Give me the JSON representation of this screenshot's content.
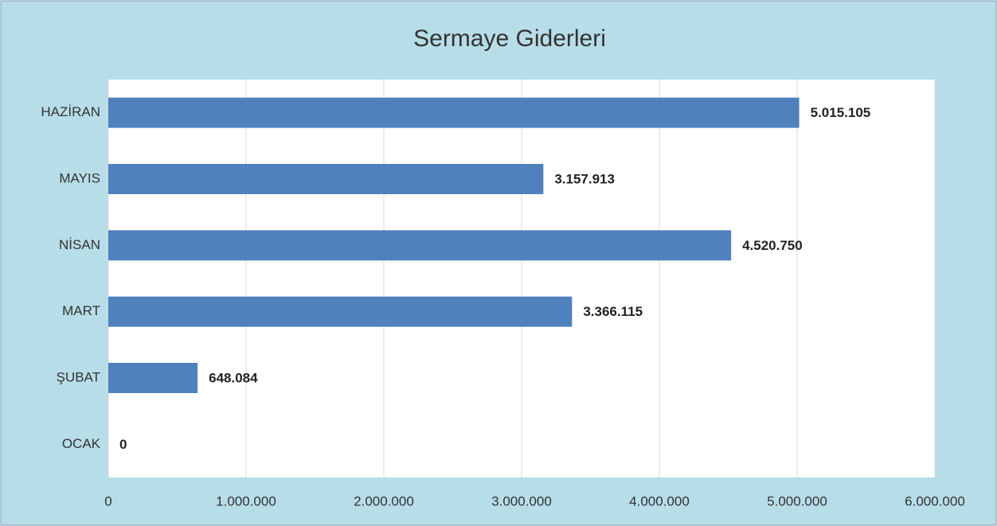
{
  "chart_data": {
    "type": "bar",
    "orientation": "horizontal",
    "title": "Sermaye Giderleri",
    "categories": [
      "HAZİRAN",
      "MAYIS",
      "NİSAN",
      "MART",
      "ŞUBAT",
      "OCAK"
    ],
    "values": [
      5015105,
      3157913,
      4520750,
      3366115,
      648084,
      0
    ],
    "value_labels": [
      "5.015.105",
      "3.157.913",
      "4.520.750",
      "3.366.115",
      "648.084",
      "0"
    ],
    "color": "#4f81bd",
    "xlim": [
      0,
      6000000
    ],
    "xticks": [
      0,
      {
        "value": 1000000,
        "label": "1.000.000"
      },
      {
        "value": 2000000,
        "label": "2.000.000"
      },
      {
        "value": 3000000,
        "label": "3.000.000"
      },
      {
        "value": 4000000,
        "label": "4.000.000"
      },
      {
        "value": 5000000,
        "label": "5.000.000"
      },
      {
        "value": 6000000,
        "label": "6.000.000"
      }
    ],
    "grid": true
  }
}
